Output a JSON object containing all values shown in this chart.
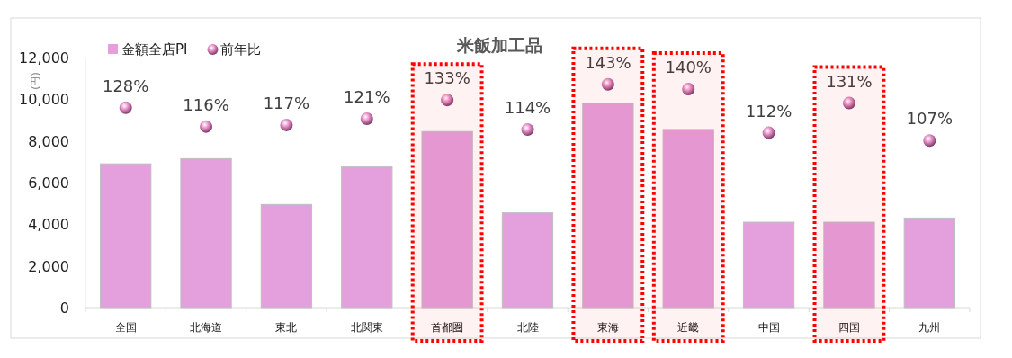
{
  "chart_data": {
    "type": "bar",
    "title": "米飯加工品",
    "ylabel": "(円)",
    "categories": [
      "全国",
      "北海道",
      "東北",
      "北関東",
      "首都圏",
      "北陸",
      "東海",
      "近畿",
      "中国",
      "四国",
      "九州"
    ],
    "series": [
      {
        "name": "金額全店PI",
        "color": "#e3a0dc",
        "values": [
          6900,
          7150,
          4950,
          6750,
          8450,
          4550,
          9800,
          8550,
          4100,
          4100,
          4300
        ]
      },
      {
        "name": "前年比",
        "type": "scatter",
        "axis": "y2",
        "color": "#e58fc8",
        "values": [
          128,
          116,
          117,
          121,
          133,
          114,
          143,
          140,
          112,
          131,
          107
        ],
        "value_labels": [
          "128%",
          "116%",
          "117%",
          "121%",
          "133%",
          "114%",
          "143%",
          "140%",
          "112%",
          "131%",
          "107%"
        ]
      }
    ],
    "ylim": [
      0,
      12000
    ],
    "yticks": [
      {
        "value": 0,
        "label": "0"
      },
      {
        "value": 2000,
        "label": "2,000"
      },
      {
        "value": 4000,
        "label": "4,000"
      },
      {
        "value": 6000,
        "label": "6,000"
      },
      {
        "value": 8000,
        "label": "8,000"
      },
      {
        "value": 10000,
        "label": "10,000"
      },
      {
        "value": 12000,
        "label": "12,000"
      }
    ],
    "grid": false,
    "legend": "top left",
    "marker": "circle",
    "bands": [
      {
        "axis": "x",
        "from": "首都圏",
        "to": "首都圏",
        "color": "#ff0000"
      },
      {
        "axis": "x",
        "from": "東海",
        "to": "東海",
        "color": "#ff0000"
      },
      {
        "axis": "x",
        "from": "近畿",
        "to": "近畿",
        "color": "#ff0000"
      },
      {
        "axis": "x",
        "from": "四国",
        "to": "四国",
        "color": "#ff0000"
      }
    ]
  }
}
